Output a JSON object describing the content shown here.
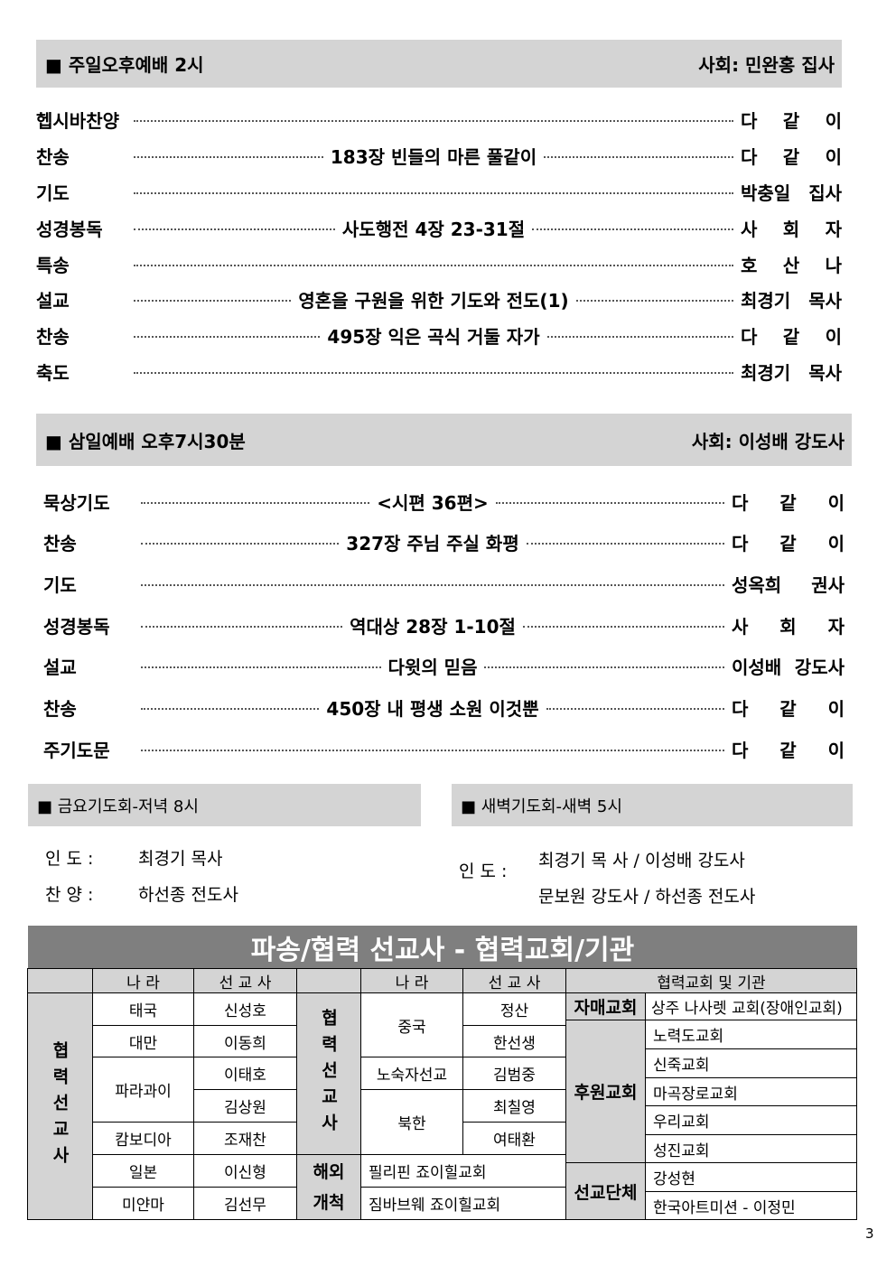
{
  "s1": {
    "title": "■ 주일오후예배 2시",
    "host": "사회: 민완홍 집사",
    "rows": [
      {
        "l": "헵시바찬양",
        "m": "",
        "r": "다 같 이"
      },
      {
        "l": "찬송",
        "m": "183장 빈들의 마른 풀같이",
        "r": "다 같 이"
      },
      {
        "l": "기도",
        "m": "",
        "r": "박충일 집사"
      },
      {
        "l": "성경봉독",
        "m": "사도행전 4장 23-31절",
        "r": "사 회 자"
      },
      {
        "l": "특송",
        "m": "",
        "r": "호 산 나"
      },
      {
        "l": "설교",
        "m": "영혼을 구원을 위한 기도와 전도(1)",
        "r": "최경기 목사"
      },
      {
        "l": "찬송",
        "m": "495장 익은 곡식 거둘 자가",
        "r": "다 같 이"
      },
      {
        "l": "축도",
        "m": "",
        "r": "최경기 목사"
      }
    ]
  },
  "s2": {
    "title": "■ 삼일예배 오후7시30분",
    "host": "사회: 이성배 강도사",
    "rows": [
      {
        "l": "묵상기도",
        "m": "<시편 36편>",
        "r": "다 같 이"
      },
      {
        "l": "찬송",
        "m": "327장 주님 주실 화평",
        "r": "다 같 이"
      },
      {
        "l": "기도",
        "m": "",
        "r": "성옥희 권사"
      },
      {
        "l": "성경봉독",
        "m": "역대상 28장 1-10절",
        "r": "사 회 자"
      },
      {
        "l": "설교",
        "m": "다윗의 믿음",
        "r": "이성배 강도사"
      },
      {
        "l": "찬송",
        "m": "450장 내 평생 소원 이것뿐",
        "r": "다 같 이"
      },
      {
        "l": "주기도문",
        "m": "",
        "r": "다 같 이"
      }
    ]
  },
  "fri": {
    "title": "■ 금요기도회-저녁 8시",
    "lead_label": "인 도 :",
    "lead": "최경기 목사",
    "praise_label": "찬 양 :",
    "praise": "하선종 전도사"
  },
  "dawn": {
    "title": "■ 새벽기도회-새벽 5시",
    "lead_label": "인 도 :",
    "line1": "최경기 목  사 / 이성배 강도사",
    "line2": "문보원 강도사 / 하선종 전도사"
  },
  "mission": {
    "title": "파송/협력 선교사 - 협력교회/기관",
    "h_country": "나  라",
    "h_missionary": "선 교 사",
    "h_church": "협력교회 및 기관",
    "g1": "협력선교사",
    "g2": "협력선교사",
    "g3": "해외개척",
    "left": [
      [
        "태국",
        "신성호"
      ],
      [
        "대만",
        "이동희"
      ],
      [
        "파라과이",
        "이태호"
      ],
      [
        "",
        "김상원"
      ],
      [
        "캄보디아",
        "조재찬"
      ],
      [
        "일본",
        "이신형"
      ],
      [
        "미얀마",
        "김선무"
      ]
    ],
    "mid": {
      "china": "중국",
      "c1": "정산",
      "c2": "한선생",
      "homeless": "노숙자선교",
      "h1": "김범중",
      "nk": "북한",
      "n1": "최칠영",
      "n2": "여태환",
      "ph": "필리핀 죠이힐교회",
      "zw": "짐바브웨 죠이힐교회"
    },
    "sister": "자매교회",
    "sister_church": "상주 나사렛 교회(장애인교회)",
    "support": "후원교회",
    "support_list": [
      "노력도교회",
      "신죽교회",
      "마곡장로교회",
      "우리교회",
      "성진교회"
    ],
    "org": "선교단체",
    "org_list": [
      "강성현",
      "한국아트미션 - 이정민"
    ]
  },
  "page": "3"
}
